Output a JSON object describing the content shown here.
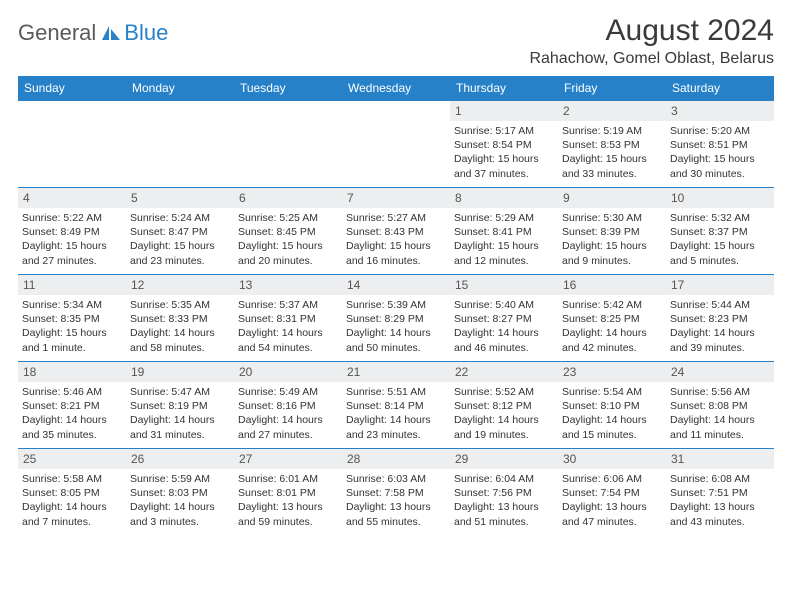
{
  "logo": {
    "word1": "General",
    "word2": "Blue"
  },
  "title": "August 2024",
  "location": "Rahachow, Gomel Oblast, Belarus",
  "dayHeaders": [
    "Sunday",
    "Monday",
    "Tuesday",
    "Wednesday",
    "Thursday",
    "Friday",
    "Saturday"
  ],
  "colors": {
    "headerBg": "#2681c8",
    "headerText": "#ffffff",
    "dayNumBg": "#eceeef",
    "rowBorder": "#2681c8",
    "logoGray": "#5a5a5a",
    "logoBlue": "#2681c8"
  },
  "weeks": [
    [
      {
        "empty": true
      },
      {
        "empty": true
      },
      {
        "empty": true
      },
      {
        "empty": true
      },
      {
        "num": "1",
        "sunrise": "Sunrise: 5:17 AM",
        "sunset": "Sunset: 8:54 PM",
        "daylight": "Daylight: 15 hours and 37 minutes."
      },
      {
        "num": "2",
        "sunrise": "Sunrise: 5:19 AM",
        "sunset": "Sunset: 8:53 PM",
        "daylight": "Daylight: 15 hours and 33 minutes."
      },
      {
        "num": "3",
        "sunrise": "Sunrise: 5:20 AM",
        "sunset": "Sunset: 8:51 PM",
        "daylight": "Daylight: 15 hours and 30 minutes."
      }
    ],
    [
      {
        "num": "4",
        "sunrise": "Sunrise: 5:22 AM",
        "sunset": "Sunset: 8:49 PM",
        "daylight": "Daylight: 15 hours and 27 minutes."
      },
      {
        "num": "5",
        "sunrise": "Sunrise: 5:24 AM",
        "sunset": "Sunset: 8:47 PM",
        "daylight": "Daylight: 15 hours and 23 minutes."
      },
      {
        "num": "6",
        "sunrise": "Sunrise: 5:25 AM",
        "sunset": "Sunset: 8:45 PM",
        "daylight": "Daylight: 15 hours and 20 minutes."
      },
      {
        "num": "7",
        "sunrise": "Sunrise: 5:27 AM",
        "sunset": "Sunset: 8:43 PM",
        "daylight": "Daylight: 15 hours and 16 minutes."
      },
      {
        "num": "8",
        "sunrise": "Sunrise: 5:29 AM",
        "sunset": "Sunset: 8:41 PM",
        "daylight": "Daylight: 15 hours and 12 minutes."
      },
      {
        "num": "9",
        "sunrise": "Sunrise: 5:30 AM",
        "sunset": "Sunset: 8:39 PM",
        "daylight": "Daylight: 15 hours and 9 minutes."
      },
      {
        "num": "10",
        "sunrise": "Sunrise: 5:32 AM",
        "sunset": "Sunset: 8:37 PM",
        "daylight": "Daylight: 15 hours and 5 minutes."
      }
    ],
    [
      {
        "num": "11",
        "sunrise": "Sunrise: 5:34 AM",
        "sunset": "Sunset: 8:35 PM",
        "daylight": "Daylight: 15 hours and 1 minute."
      },
      {
        "num": "12",
        "sunrise": "Sunrise: 5:35 AM",
        "sunset": "Sunset: 8:33 PM",
        "daylight": "Daylight: 14 hours and 58 minutes."
      },
      {
        "num": "13",
        "sunrise": "Sunrise: 5:37 AM",
        "sunset": "Sunset: 8:31 PM",
        "daylight": "Daylight: 14 hours and 54 minutes."
      },
      {
        "num": "14",
        "sunrise": "Sunrise: 5:39 AM",
        "sunset": "Sunset: 8:29 PM",
        "daylight": "Daylight: 14 hours and 50 minutes."
      },
      {
        "num": "15",
        "sunrise": "Sunrise: 5:40 AM",
        "sunset": "Sunset: 8:27 PM",
        "daylight": "Daylight: 14 hours and 46 minutes."
      },
      {
        "num": "16",
        "sunrise": "Sunrise: 5:42 AM",
        "sunset": "Sunset: 8:25 PM",
        "daylight": "Daylight: 14 hours and 42 minutes."
      },
      {
        "num": "17",
        "sunrise": "Sunrise: 5:44 AM",
        "sunset": "Sunset: 8:23 PM",
        "daylight": "Daylight: 14 hours and 39 minutes."
      }
    ],
    [
      {
        "num": "18",
        "sunrise": "Sunrise: 5:46 AM",
        "sunset": "Sunset: 8:21 PM",
        "daylight": "Daylight: 14 hours and 35 minutes."
      },
      {
        "num": "19",
        "sunrise": "Sunrise: 5:47 AM",
        "sunset": "Sunset: 8:19 PM",
        "daylight": "Daylight: 14 hours and 31 minutes."
      },
      {
        "num": "20",
        "sunrise": "Sunrise: 5:49 AM",
        "sunset": "Sunset: 8:16 PM",
        "daylight": "Daylight: 14 hours and 27 minutes."
      },
      {
        "num": "21",
        "sunrise": "Sunrise: 5:51 AM",
        "sunset": "Sunset: 8:14 PM",
        "daylight": "Daylight: 14 hours and 23 minutes."
      },
      {
        "num": "22",
        "sunrise": "Sunrise: 5:52 AM",
        "sunset": "Sunset: 8:12 PM",
        "daylight": "Daylight: 14 hours and 19 minutes."
      },
      {
        "num": "23",
        "sunrise": "Sunrise: 5:54 AM",
        "sunset": "Sunset: 8:10 PM",
        "daylight": "Daylight: 14 hours and 15 minutes."
      },
      {
        "num": "24",
        "sunrise": "Sunrise: 5:56 AM",
        "sunset": "Sunset: 8:08 PM",
        "daylight": "Daylight: 14 hours and 11 minutes."
      }
    ],
    [
      {
        "num": "25",
        "sunrise": "Sunrise: 5:58 AM",
        "sunset": "Sunset: 8:05 PM",
        "daylight": "Daylight: 14 hours and 7 minutes."
      },
      {
        "num": "26",
        "sunrise": "Sunrise: 5:59 AM",
        "sunset": "Sunset: 8:03 PM",
        "daylight": "Daylight: 14 hours and 3 minutes."
      },
      {
        "num": "27",
        "sunrise": "Sunrise: 6:01 AM",
        "sunset": "Sunset: 8:01 PM",
        "daylight": "Daylight: 13 hours and 59 minutes."
      },
      {
        "num": "28",
        "sunrise": "Sunrise: 6:03 AM",
        "sunset": "Sunset: 7:58 PM",
        "daylight": "Daylight: 13 hours and 55 minutes."
      },
      {
        "num": "29",
        "sunrise": "Sunrise: 6:04 AM",
        "sunset": "Sunset: 7:56 PM",
        "daylight": "Daylight: 13 hours and 51 minutes."
      },
      {
        "num": "30",
        "sunrise": "Sunrise: 6:06 AM",
        "sunset": "Sunset: 7:54 PM",
        "daylight": "Daylight: 13 hours and 47 minutes."
      },
      {
        "num": "31",
        "sunrise": "Sunrise: 6:08 AM",
        "sunset": "Sunset: 7:51 PM",
        "daylight": "Daylight: 13 hours and 43 minutes."
      }
    ]
  ]
}
